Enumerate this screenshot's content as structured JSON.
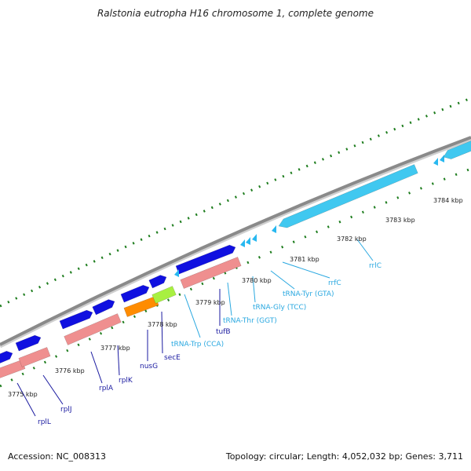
{
  "title": "Ralstonia eutropha H16 chromosome 1, complete genome",
  "footer": {
    "accession": "Accession: NC_008313",
    "summary": "Topology: circular; Length: 4,052,032 bp; Genes: 3,711"
  },
  "colors": {
    "backbone": "#8a8a8a",
    "gc_ticks": "#1e7d1e",
    "cds_forward": "#1010e0",
    "gene_reverse": "#ef8f8f",
    "trna": "#28b8f0",
    "rrna": "#40c8f0",
    "orange_feature": "#ff8c00",
    "green_feature": "#a8f040",
    "cds_label": "#1a1aa0",
    "rna_label": "#2aa8e0"
  },
  "scale": {
    "ticks": [
      {
        "label": "3775 kbp"
      },
      {
        "label": "3776 kbp"
      },
      {
        "label": "3777 kbp"
      },
      {
        "label": "3778 kbp"
      },
      {
        "label": "3779 kbp"
      },
      {
        "label": "3780 kbp"
      },
      {
        "label": "3781 kbp"
      },
      {
        "label": "3782 kbp"
      },
      {
        "label": "3783 kbp"
      },
      {
        "label": "3784 kbp"
      }
    ]
  },
  "labels": [
    {
      "text": "rplL",
      "kind": "cds"
    },
    {
      "text": "rplJ",
      "kind": "cds"
    },
    {
      "text": "rplA",
      "kind": "cds"
    },
    {
      "text": "rplK",
      "kind": "cds"
    },
    {
      "text": "nusG",
      "kind": "cds"
    },
    {
      "text": "secE",
      "kind": "cds"
    },
    {
      "text": "tRNA-Trp (CCA)",
      "kind": "rna"
    },
    {
      "text": "tufB",
      "kind": "cds"
    },
    {
      "text": "tRNA-Thr (GGT)",
      "kind": "rna"
    },
    {
      "text": "tRNA-Gly (TCC)",
      "kind": "rna"
    },
    {
      "text": "tRNA-Tyr (GTA)",
      "kind": "rna"
    },
    {
      "text": "rrfC",
      "kind": "rna"
    },
    {
      "text": "rrlC",
      "kind": "rna"
    }
  ]
}
